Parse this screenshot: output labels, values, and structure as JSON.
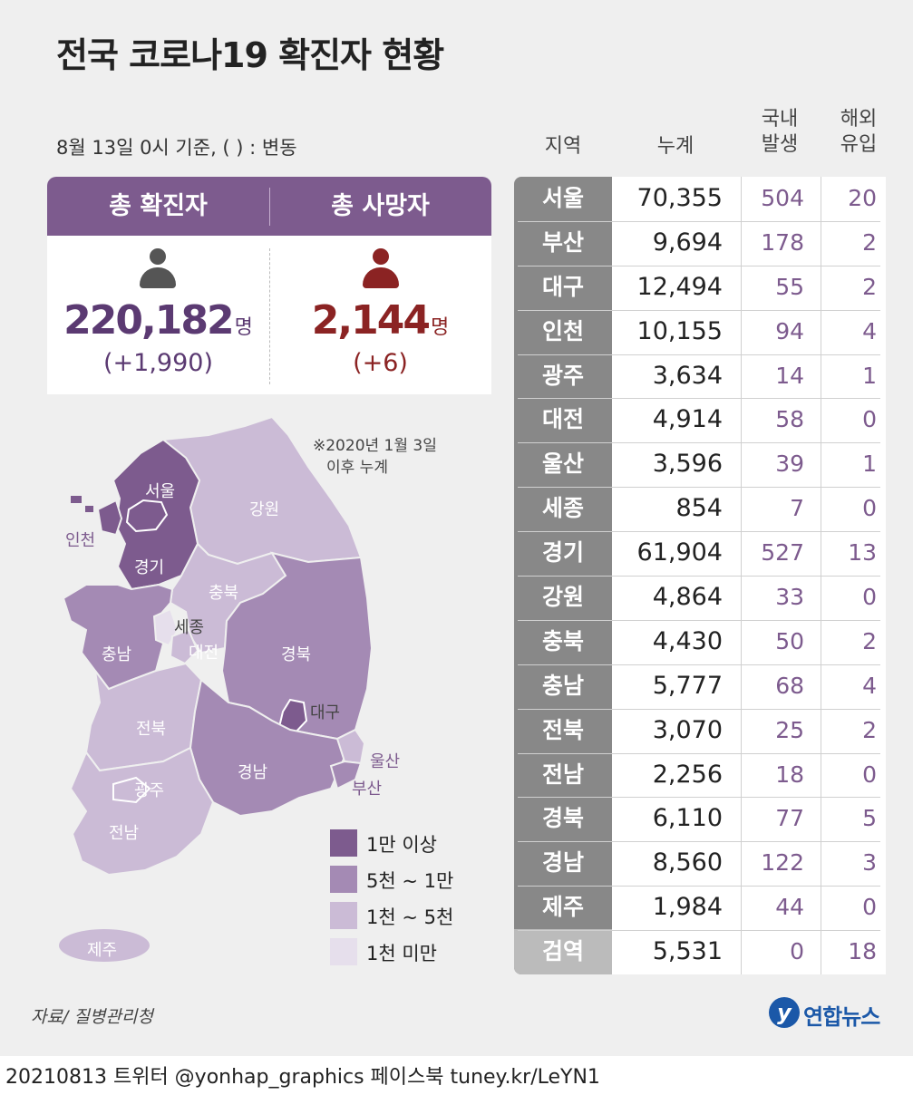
{
  "title": "전국 코로나19 확진자 현황",
  "as_of": "8월 13일 0시 기준, ( ) : 변동",
  "totals": {
    "confirmed_label": "총 확진자",
    "confirmed_value": "220,182",
    "confirmed_unit": "명",
    "confirmed_change": "(+1,990)",
    "deaths_label": "총 사망자",
    "deaths_value": "2,144",
    "deaths_unit": "명",
    "deaths_change": "(+6)",
    "confirmed_icon": "person-icon",
    "deaths_icon": "person-icon",
    "colors": {
      "header": "#7d5b8e",
      "confirmed": "#5b3a72",
      "deaths": "#8b2323"
    }
  },
  "table": {
    "headers": {
      "region": "지역",
      "total": "누계",
      "domestic_1": "국내",
      "domestic_2": "발생",
      "imported_1": "해외",
      "imported_2": "유입"
    },
    "rows": [
      {
        "region": "서울",
        "total": "70,355",
        "domestic": "504",
        "imported": "20"
      },
      {
        "region": "부산",
        "total": "9,694",
        "domestic": "178",
        "imported": "2"
      },
      {
        "region": "대구",
        "total": "12,494",
        "domestic": "55",
        "imported": "2"
      },
      {
        "region": "인천",
        "total": "10,155",
        "domestic": "94",
        "imported": "4"
      },
      {
        "region": "광주",
        "total": "3,634",
        "domestic": "14",
        "imported": "1"
      },
      {
        "region": "대전",
        "total": "4,914",
        "domestic": "58",
        "imported": "0"
      },
      {
        "region": "울산",
        "total": "3,596",
        "domestic": "39",
        "imported": "1"
      },
      {
        "region": "세종",
        "total": "854",
        "domestic": "7",
        "imported": "0"
      },
      {
        "region": "경기",
        "total": "61,904",
        "domestic": "527",
        "imported": "13"
      },
      {
        "region": "강원",
        "total": "4,864",
        "domestic": "33",
        "imported": "0"
      },
      {
        "region": "충북",
        "total": "4,430",
        "domestic": "50",
        "imported": "2"
      },
      {
        "region": "충남",
        "total": "5,777",
        "domestic": "68",
        "imported": "4"
      },
      {
        "region": "전북",
        "total": "3,070",
        "domestic": "25",
        "imported": "2"
      },
      {
        "region": "전남",
        "total": "2,256",
        "domestic": "18",
        "imported": "0"
      },
      {
        "region": "경북",
        "total": "6,110",
        "domestic": "77",
        "imported": "5"
      },
      {
        "region": "경남",
        "total": "8,560",
        "domestic": "122",
        "imported": "3"
      },
      {
        "region": "제주",
        "total": "1,984",
        "domestic": "44",
        "imported": "0"
      },
      {
        "region": "검역",
        "total": "5,531",
        "domestic": "0",
        "imported": "18"
      }
    ]
  },
  "map": {
    "note_1": "※2020년 1월 3일",
    "note_2": "이후 누계",
    "labels": {
      "seoul": "서울",
      "incheon": "인천",
      "gyeonggi": "경기",
      "gangwon": "강원",
      "chungbuk": "충북",
      "sejong": "세종",
      "daejeon": "대전",
      "chungnam": "충남",
      "gyeongbuk": "경북",
      "daegu": "대구",
      "jeonbuk": "전북",
      "gwangju": "광주",
      "gyeongnam": "경남",
      "ulsan": "울산",
      "busan": "부산",
      "jeonnam": "전남",
      "jeju": "제주"
    },
    "tier_colors": {
      "over_10k": "#7d5b8e",
      "5k_10k": "#a48ab4",
      "1k_5k": "#cbbbd6",
      "under_1k": "#e6dfec"
    }
  },
  "legend": [
    {
      "label": "1만 이상",
      "color": "#7d5b8e"
    },
    {
      "label": "5천 ~ 1만",
      "color": "#a48ab4"
    },
    {
      "label": "1천 ~ 5천",
      "color": "#cbbbd6"
    },
    {
      "label": "1천 미만",
      "color": "#e6dfec"
    }
  ],
  "source": "자료/ 질병관리청",
  "logo": {
    "icon": "yonhap-logo-icon",
    "text": "연합뉴스"
  },
  "footer": "20210813 트위터 @yonhap_graphics  페이스북 tuney.kr/LeYN1"
}
